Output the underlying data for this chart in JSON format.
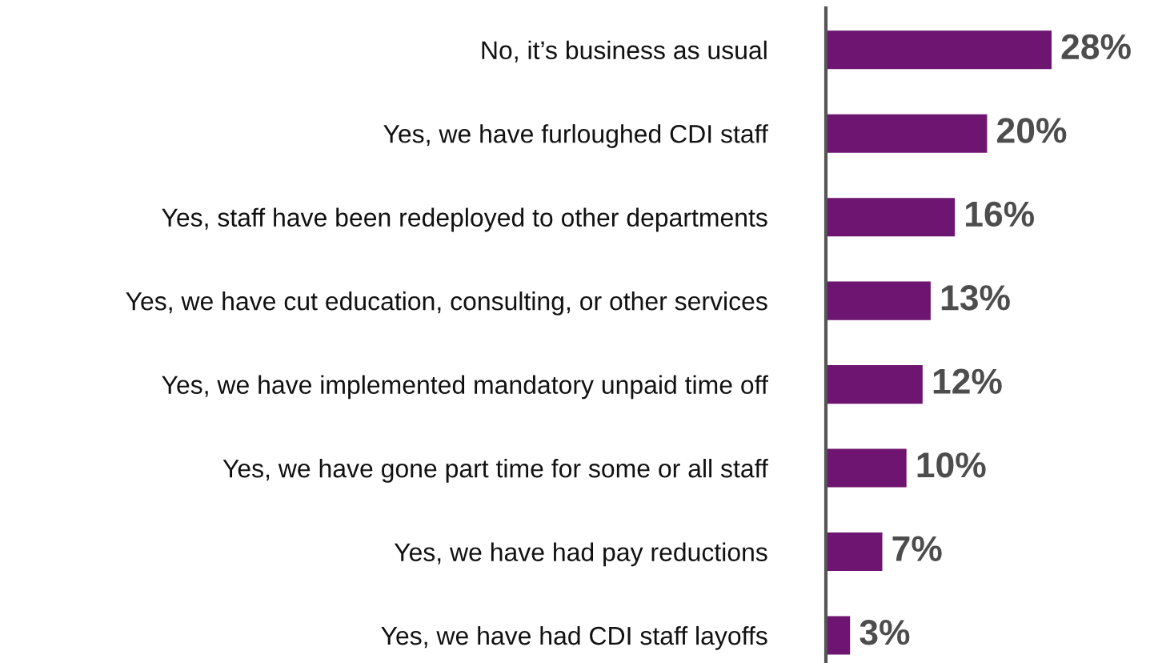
{
  "chart_data": {
    "type": "bar",
    "orientation": "horizontal",
    "categories": [
      "No, it’s business as usual",
      "Yes, we have furloughed CDI staff",
      "Yes, staff have been redeployed to other departments",
      "Yes, we have cut education, consulting, or other services",
      "Yes, we have implemented mandatory unpaid time off",
      "Yes, we have gone part time for some or all staff",
      "Yes, we have had pay reductions",
      "Yes, we have had CDI staff layoffs"
    ],
    "values": [
      28,
      20,
      16,
      13,
      12,
      10,
      7,
      3
    ],
    "value_labels": [
      "28%",
      "20%",
      "16%",
      "13%",
      "12%",
      "10%",
      "7%",
      "3%"
    ],
    "color": "#6d1570",
    "grid": false,
    "legend": false
  }
}
